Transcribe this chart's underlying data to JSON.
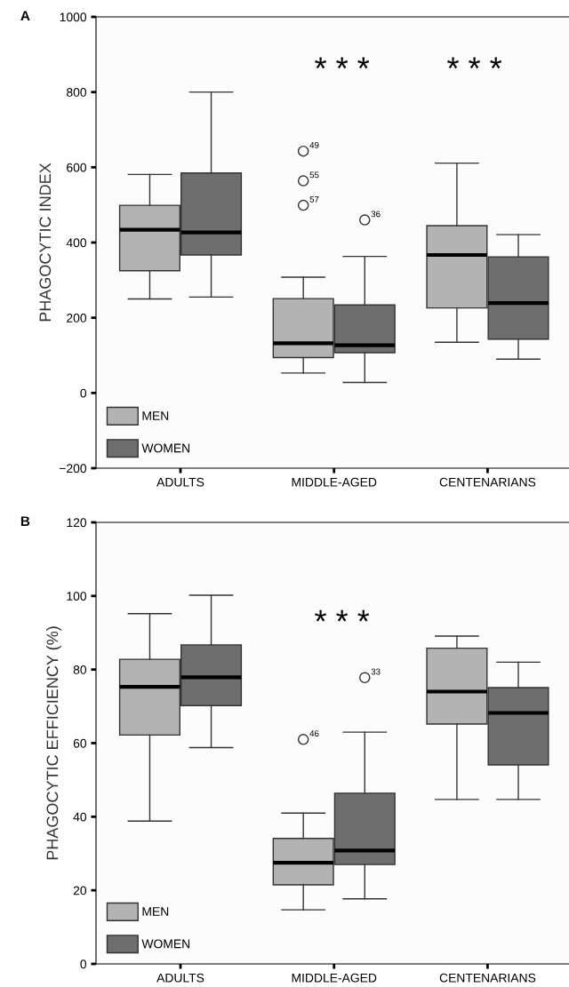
{
  "chart_data": [
    {
      "type": "box",
      "title": "A",
      "ylabel": "PHAGOCYTIC INDEX",
      "categories": [
        "ADULTS",
        "MIDDLE-AGED",
        "CENTENARIANS"
      ],
      "ylim": [
        -200,
        1000
      ],
      "yticks": [
        {
          "value": -200,
          "label": "−200"
        },
        0,
        200,
        400,
        600,
        800,
        1000
      ],
      "grid": false,
      "legend": "bottom left",
      "series": [
        {
          "name": "MEN",
          "color": "#b3b3b3",
          "boxes": [
            {
              "low": 250,
              "q1": 325,
              "median": 434,
              "q3": 499,
              "high": 581
            },
            {
              "low": 53,
              "q1": 94,
              "median": 132,
              "q3": 251,
              "high": 308,
              "outliers": [
                643,
                564,
                499
              ]
            },
            {
              "low": 135,
              "q1": 226,
              "median": 367,
              "q3": 445,
              "high": 611
            }
          ]
        },
        {
          "name": "WOMEN",
          "color": "#6e6e6e",
          "boxes": [
            {
              "low": 255,
              "q1": 367,
              "median": 427,
              "q3": 585,
              "high": 800
            },
            {
              "low": 28,
              "q1": 107,
              "median": 127,
              "q3": 234,
              "high": 363,
              "outliers": [
                460
              ]
            },
            {
              "low": 90,
              "q1": 143,
              "median": 239,
              "q3": 362,
              "high": 421
            }
          ]
        }
      ],
      "annotations": [
        "* * *",
        "* * *",
        "49",
        "55",
        "57",
        "36"
      ]
    },
    {
      "type": "box",
      "title": "B",
      "ylabel": "PHAGOCYTIC EFFICIENCY (%)",
      "categories": [
        "ADULTS",
        "MIDDLE-AGED",
        "CENTENARIANS"
      ],
      "ylim": [
        0,
        120
      ],
      "yticks": [
        0,
        20,
        40,
        60,
        80,
        100,
        120
      ],
      "grid": false,
      "legend": "bottom left",
      "series": [
        {
          "name": "MEN",
          "color": "#b3b3b3",
          "boxes": [
            {
              "low": 38.8,
              "q1": 62.2,
              "median": 75.3,
              "q3": 82.8,
              "high": 95.2
            },
            {
              "low": 14.7,
              "q1": 21.5,
              "median": 27.5,
              "q3": 34.1,
              "high": 41,
              "outliers": [
                61
              ]
            },
            {
              "low": 44.7,
              "q1": 65.2,
              "median": 74,
              "q3": 85.8,
              "high": 89.1
            }
          ]
        },
        {
          "name": "WOMEN",
          "color": "#6e6e6e",
          "boxes": [
            {
              "low": 58.8,
              "q1": 70.2,
              "median": 77.9,
              "q3": 86.7,
              "high": 100.2
            },
            {
              "low": 17.7,
              "q1": 27,
              "median": 30.8,
              "q3": 46.4,
              "high": 63,
              "outliers": [
                77.8
              ]
            },
            {
              "low": 44.7,
              "q1": 54.1,
              "median": 68.2,
              "q3": 75.1,
              "high": 82
            }
          ]
        }
      ],
      "annotations": [
        "* * *",
        "46",
        "33"
      ]
    }
  ]
}
